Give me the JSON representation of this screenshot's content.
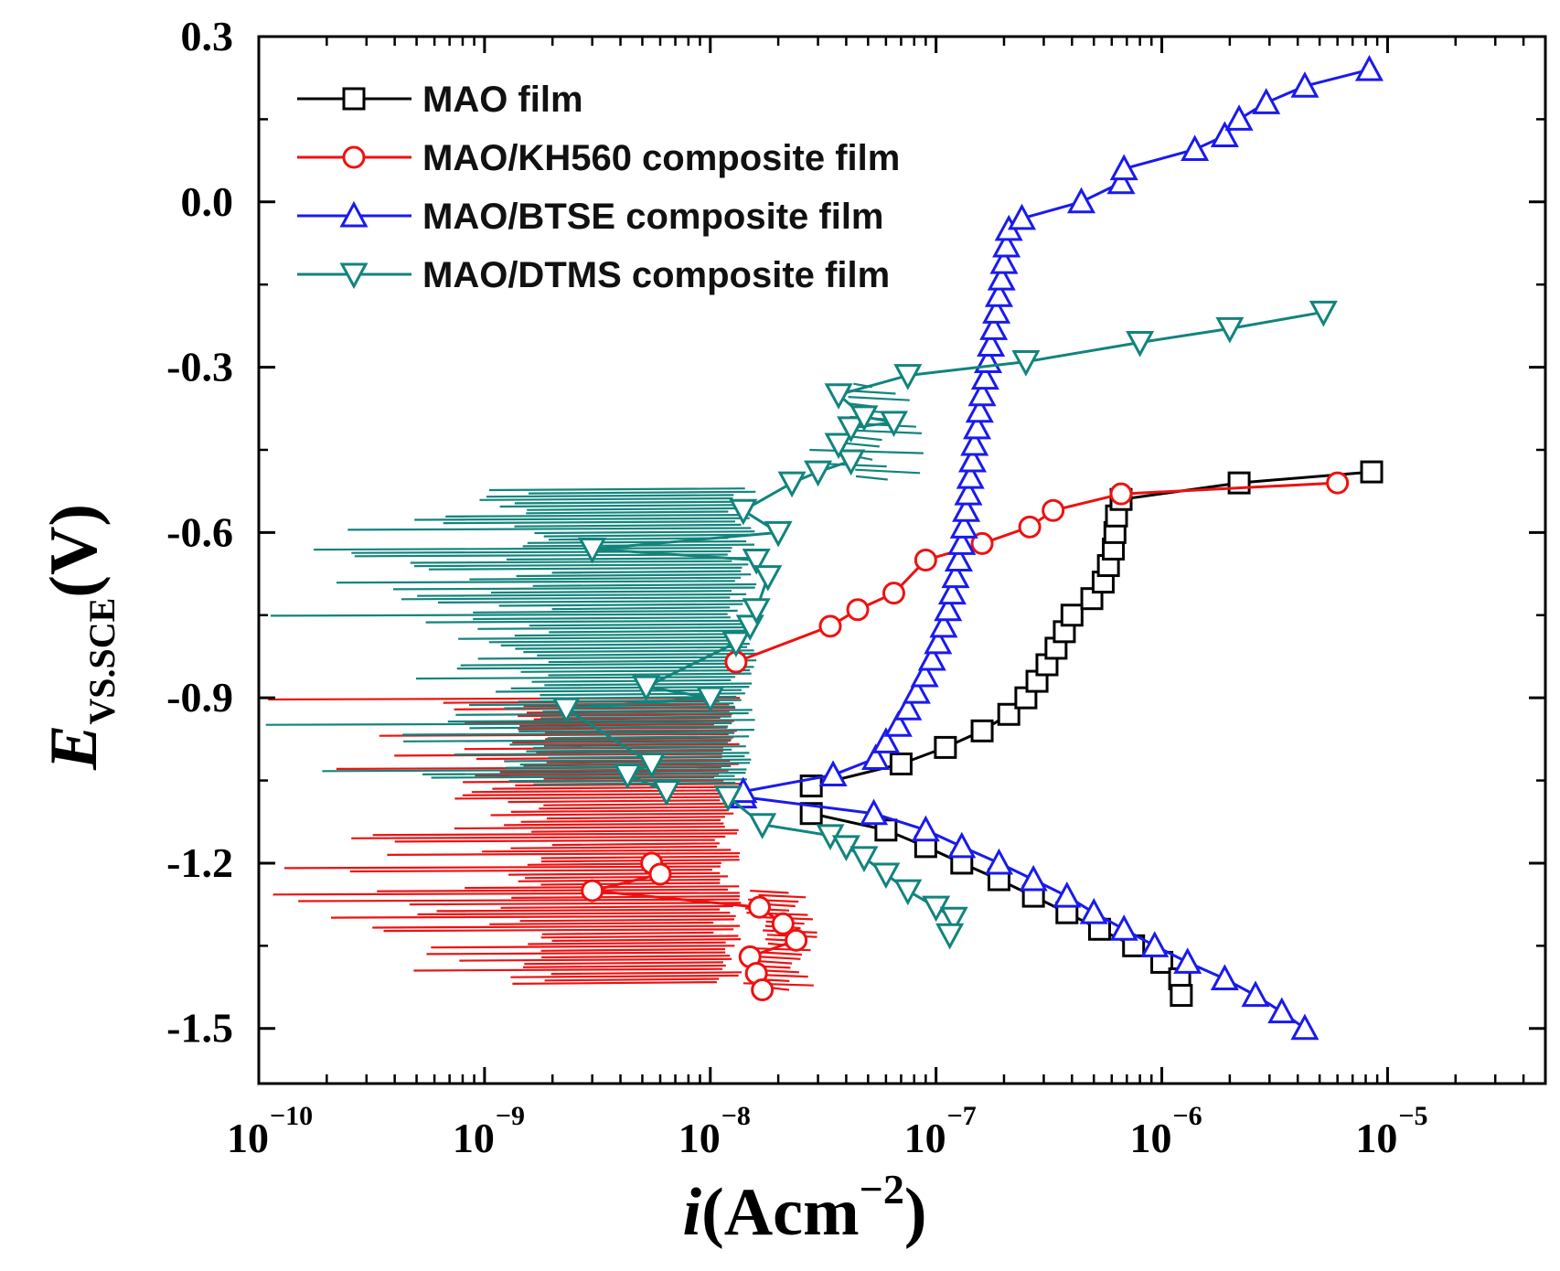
{
  "chart_data": {
    "type": "line",
    "x_scale": "log",
    "xlabel": {
      "italic": "i",
      "text": "(Acm",
      "sup": "−2",
      "close": ")"
    },
    "ylabel": {
      "italic": "E",
      "sub": "VS.SCE",
      "text": "(V)"
    },
    "xlim": [
      1e-10,
      5e-05
    ],
    "ylim": [
      -1.6,
      0.3
    ],
    "x_ticks": [
      {
        "base": "10",
        "exp": "−10"
      },
      {
        "base": "10",
        "exp": "−9"
      },
      {
        "base": "10",
        "exp": "−8"
      },
      {
        "base": "10",
        "exp": "−7"
      },
      {
        "base": "10",
        "exp": "−6"
      },
      {
        "base": "10",
        "exp": "−5"
      }
    ],
    "y_ticks": [
      "0.3",
      "0.0",
      "-0.3",
      "-0.6",
      "-0.9",
      "-1.2",
      "-1.5"
    ],
    "grid": false,
    "legend_position": "top-left",
    "series": [
      {
        "name": "MAO film",
        "color": "#000000",
        "marker": "square",
        "points": [
          [
            2.8e-08,
            -1.11
          ],
          [
            6e-08,
            -1.14
          ],
          [
            9e-08,
            -1.17
          ],
          [
            1.3e-07,
            -1.2
          ],
          [
            1.9e-07,
            -1.23
          ],
          [
            2.7e-07,
            -1.26
          ],
          [
            3.8e-07,
            -1.29
          ],
          [
            5.3e-07,
            -1.32
          ],
          [
            7.5e-07,
            -1.35
          ],
          [
            1e-06,
            -1.38
          ],
          [
            1.2e-06,
            -1.41
          ],
          [
            1.22e-06,
            -1.44
          ],
          [
            2.8e-08,
            -1.06
          ],
          [
            7e-08,
            -1.02
          ],
          [
            1.1e-07,
            -0.99
          ],
          [
            1.6e-07,
            -0.96
          ],
          [
            2.1e-07,
            -0.93
          ],
          [
            2.5e-07,
            -0.9
          ],
          [
            2.8e-07,
            -0.87
          ],
          [
            3.1e-07,
            -0.84
          ],
          [
            3.4e-07,
            -0.81
          ],
          [
            3.7e-07,
            -0.78
          ],
          [
            4e-07,
            -0.75
          ],
          [
            4.9e-07,
            -0.72
          ],
          [
            5.5e-07,
            -0.69
          ],
          [
            5.8e-07,
            -0.66
          ],
          [
            6.1e-07,
            -0.63
          ],
          [
            6.2e-07,
            -0.6
          ],
          [
            6.3e-07,
            -0.57
          ],
          [
            6.6e-07,
            -0.54
          ],
          [
            2.2e-06,
            -0.51
          ],
          [
            8.5e-06,
            -0.49
          ]
        ]
      },
      {
        "name": "MAO/KH560 composite film",
        "color": "#ee1111",
        "marker": "circle",
        "points": [
          [
            3e-09,
            -1.25
          ],
          [
            5.5e-09,
            -1.2
          ],
          [
            6e-09,
            -1.22
          ],
          [
            1.65e-08,
            -1.28
          ],
          [
            2.1e-08,
            -1.31
          ],
          [
            2.4e-08,
            -1.34
          ],
          [
            1.5e-08,
            -1.37
          ],
          [
            1.6e-08,
            -1.4
          ],
          [
            1.7e-08,
            -1.43
          ],
          [
            1.3e-08,
            -0.835
          ],
          [
            3.4e-08,
            -0.77
          ],
          [
            4.5e-08,
            -0.74
          ],
          [
            6.5e-08,
            -0.71
          ],
          [
            9e-08,
            -0.65
          ],
          [
            1.6e-07,
            -0.62
          ],
          [
            2.6e-07,
            -0.59
          ],
          [
            3.3e-07,
            -0.56
          ],
          [
            6.6e-07,
            -0.53
          ],
          [
            6e-06,
            -0.51
          ]
        ]
      },
      {
        "name": "MAO/BTSE composite film",
        "color": "#1a1aee",
        "marker": "triangle-up",
        "points": [
          [
            1.4e-08,
            -1.08
          ],
          [
            5.3e-08,
            -1.11
          ],
          [
            9e-08,
            -1.14
          ],
          [
            1.3e-07,
            -1.17
          ],
          [
            1.9e-07,
            -1.2
          ],
          [
            2.7e-07,
            -1.23
          ],
          [
            3.8e-07,
            -1.26
          ],
          [
            5e-07,
            -1.29
          ],
          [
            6.8e-07,
            -1.32
          ],
          [
            9.3e-07,
            -1.35
          ],
          [
            1.3e-06,
            -1.38
          ],
          [
            1.9e-06,
            -1.41
          ],
          [
            2.6e-06,
            -1.44
          ],
          [
            3.4e-06,
            -1.47
          ],
          [
            4.3e-06,
            -1.5
          ],
          [
            1.4e-08,
            -1.07
          ],
          [
            3.5e-08,
            -1.04
          ],
          [
            5.4e-08,
            -1.01
          ],
          [
            6e-08,
            -0.98
          ],
          [
            6.8e-08,
            -0.95
          ],
          [
            7.5e-08,
            -0.92
          ],
          [
            8.2e-08,
            -0.89
          ],
          [
            8.9e-08,
            -0.86
          ],
          [
            9.6e-08,
            -0.83
          ],
          [
            1.02e-07,
            -0.8
          ],
          [
            1.08e-07,
            -0.77
          ],
          [
            1.13e-07,
            -0.74
          ],
          [
            1.18e-07,
            -0.71
          ],
          [
            1.22e-07,
            -0.68
          ],
          [
            1.26e-07,
            -0.65
          ],
          [
            1.3e-07,
            -0.62
          ],
          [
            1.33e-07,
            -0.59
          ],
          [
            1.36e-07,
            -0.56
          ],
          [
            1.39e-07,
            -0.53
          ],
          [
            1.42e-07,
            -0.5
          ],
          [
            1.45e-07,
            -0.47
          ],
          [
            1.48e-07,
            -0.44
          ],
          [
            1.52e-07,
            -0.41
          ],
          [
            1.56e-07,
            -0.38
          ],
          [
            1.6e-07,
            -0.35
          ],
          [
            1.65e-07,
            -0.32
          ],
          [
            1.7e-07,
            -0.29
          ],
          [
            1.75e-07,
            -0.26
          ],
          [
            1.8e-07,
            -0.23
          ],
          [
            1.85e-07,
            -0.2
          ],
          [
            1.9e-07,
            -0.17
          ],
          [
            1.95e-07,
            -0.14
          ],
          [
            2e-07,
            -0.11
          ],
          [
            2.05e-07,
            -0.08
          ],
          [
            2.1e-07,
            -0.05
          ],
          [
            2.4e-07,
            -0.03
          ],
          [
            4.4e-07,
            0.0
          ],
          [
            6.6e-07,
            0.035
          ],
          [
            6.8e-07,
            0.06
          ],
          [
            1.4e-06,
            0.095
          ],
          [
            1.9e-06,
            0.12
          ],
          [
            2.2e-06,
            0.15
          ],
          [
            2.9e-06,
            0.18
          ],
          [
            4.3e-06,
            0.21
          ],
          [
            8.3e-06,
            0.24
          ]
        ]
      },
      {
        "name": "MAO/DTMS composite film",
        "color": "#12847c",
        "marker": "triangle-down",
        "points": [
          [
            1.2e-08,
            -1.08
          ],
          [
            1.7e-08,
            -1.13
          ],
          [
            3.4e-08,
            -1.15
          ],
          [
            4e-08,
            -1.17
          ],
          [
            4.8e-08,
            -1.19
          ],
          [
            6e-08,
            -1.22
          ],
          [
            7.5e-08,
            -1.25
          ],
          [
            1e-07,
            -1.28
          ],
          [
            1.2e-07,
            -1.3
          ],
          [
            1.15e-07,
            -1.33
          ],
          [
            6.4e-09,
            -1.07
          ],
          [
            4.3e-09,
            -1.04
          ],
          [
            5.5e-09,
            -1.02
          ],
          [
            2.3e-09,
            -0.92
          ],
          [
            5.2e-09,
            -0.88
          ],
          [
            1e-08,
            -0.9
          ],
          [
            1.3e-08,
            -0.8
          ],
          [
            1.5e-08,
            -0.77
          ],
          [
            1.6e-08,
            -0.74
          ],
          [
            3e-09,
            -0.63
          ],
          [
            1.6e-08,
            -0.65
          ],
          [
            1.8e-08,
            -0.68
          ],
          [
            2e-08,
            -0.6
          ],
          [
            1.4e-08,
            -0.56
          ],
          [
            2.3e-08,
            -0.51
          ],
          [
            3e-08,
            -0.49
          ],
          [
            4.2e-08,
            -0.47
          ],
          [
            3.7e-08,
            -0.44
          ],
          [
            4.2e-08,
            -0.41
          ],
          [
            4.8e-08,
            -0.39
          ],
          [
            6.5e-08,
            -0.4
          ],
          [
            3.7e-08,
            -0.35
          ],
          [
            7.5e-08,
            -0.315
          ],
          [
            2.5e-07,
            -0.29
          ],
          [
            8e-07,
            -0.255
          ],
          [
            2e-06,
            -0.23
          ],
          [
            5.2e-06,
            -0.2
          ]
        ]
      }
    ]
  }
}
